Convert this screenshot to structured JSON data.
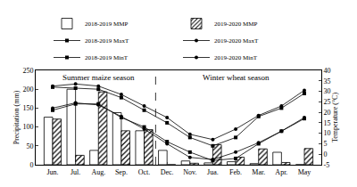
{
  "chart_data": {
    "type": "bar",
    "categories": [
      "Jun.",
      "Jul.",
      "Aug.",
      "Sep.",
      "Oct.",
      "Dec.",
      "Nov.",
      "Jua.",
      "Feb.",
      "Mar.",
      "Apr.",
      "May"
    ],
    "series": [
      {
        "name": "2018-2019 MMP",
        "type": "bar",
        "color": "#ffffff",
        "values": [
          126,
          200,
          38,
          138,
          90,
          38,
          10,
          5,
          8,
          3,
          33,
          0
        ]
      },
      {
        "name": "2019-2020 MMP",
        "type": "bar",
        "color": "#ffffff",
        "marker": "hatch",
        "values": [
          121,
          25,
          193,
          90,
          93,
          0,
          4,
          53,
          20,
          42,
          6,
          43
        ]
      },
      {
        "name": "2018-2019 MaxT",
        "type": "line",
        "axis": "y2",
        "color": "#000000",
        "marker": "square",
        "line_style": "solid",
        "values": [
          32,
          31.5,
          31,
          27,
          21,
          15,
          8,
          4,
          8,
          18,
          22,
          29
        ]
      },
      {
        "name": "2019-2020 MaxT",
        "type": "line",
        "axis": "y2",
        "color": "#000000",
        "marker": "circle",
        "line_style": "solid",
        "values": [
          32.5,
          33.5,
          32.5,
          28.5,
          23,
          17.5,
          9.5,
          7,
          12,
          18.5,
          23,
          30.5
        ]
      },
      {
        "name": "2018-2019 MinT",
        "type": "line",
        "axis": "y2",
        "color": "#000000",
        "marker": "square",
        "line_style": "solid",
        "values": [
          21,
          24,
          24,
          17.5,
          13,
          6,
          1,
          -3,
          -2,
          5,
          11,
          17
        ]
      },
      {
        "name": "2019-2020 MinT",
        "type": "line",
        "axis": "y2",
        "color": "#000000",
        "marker": "circle",
        "line_style": "solid",
        "values": [
          22,
          24.5,
          23.5,
          18,
          12,
          5,
          -1.5,
          -2.5,
          1,
          5.5,
          11,
          17.5
        ]
      }
    ],
    "y_label": "Precipitation (mm)",
    "y2_label": "Temperature (°C)",
    "ylim": [
      0,
      250
    ],
    "yticks": [
      0,
      50,
      100,
      150,
      200,
      250
    ],
    "y2lim": [
      -5,
      40
    ],
    "y2ticks": [
      -5,
      0,
      5,
      10,
      15,
      20,
      25,
      30,
      35,
      40
    ],
    "annotations": [
      "Summer maize season",
      "Winter wheat season"
    ],
    "grid": false,
    "legend": "top"
  }
}
